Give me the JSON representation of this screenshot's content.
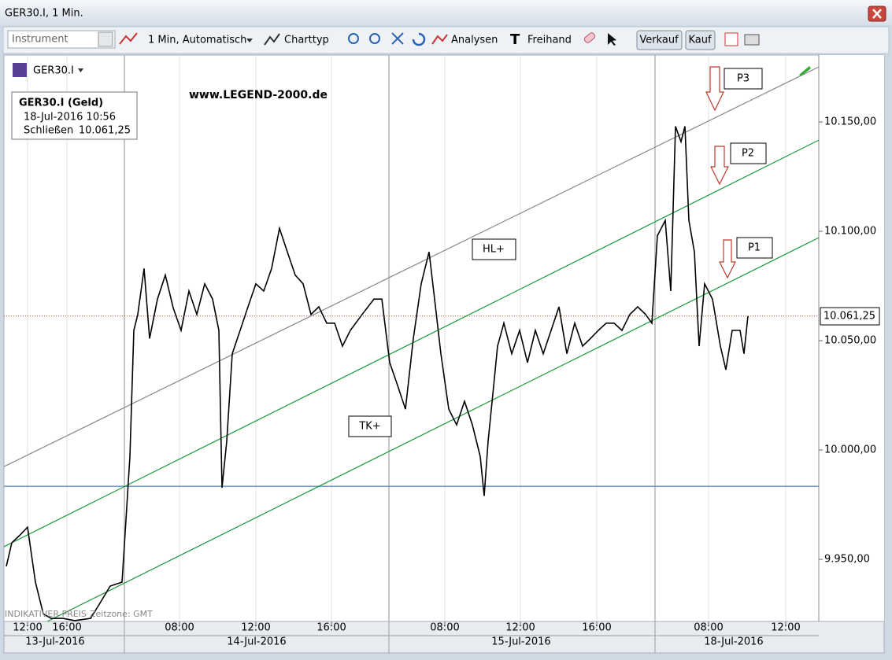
{
  "window": {
    "title": "GER30.I, 1 Min."
  },
  "toolbar": {
    "instrument": "Instrument",
    "interval": "1 Min, Automatisch",
    "chart_type": "Charttyp",
    "analyses": "Analysen",
    "freehand": "Freihand",
    "sell": "Verkauf",
    "buy": "Kauf"
  },
  "chart_data": {
    "type": "line",
    "instrument": "GER30.I",
    "watermark": "www.LEGEND-2000.de",
    "info": {
      "title": "GER30.I (Geld)",
      "time": "18-Jul-2016 10:56",
      "close_label": "Schließen"
    },
    "footer": "INDIKATIVER PREIS",
    "timezone": "Zeitzone: GMT",
    "annotations": [
      "P3",
      "P2",
      "P1",
      "HL+",
      "TK+"
    ],
    "last": {
      "value": 10061.25,
      "label": "10.061,25",
      "color": "#a0522d"
    },
    "series": [
      {
        "name": "GER30.I",
        "color": "#000000",
        "x": [
          0.6,
          2,
          4,
          6,
          8,
          10,
          12,
          15,
          18,
          22,
          24,
          27,
          30,
          31,
          32,
          33,
          34,
          35.6,
          37,
          39,
          41,
          43,
          45,
          47,
          49,
          51,
          53,
          54.6,
          55.4,
          56.6,
          58,
          60,
          62,
          64,
          66,
          68,
          70,
          72,
          74,
          76,
          78,
          80,
          82,
          84,
          86,
          88,
          91,
          94,
          96,
          98,
          100,
          102,
          104,
          106,
          108,
          109.4,
          111,
          113,
          115,
          117,
          119,
          121,
          122,
          123,
          124,
          125.4,
          127,
          129,
          131,
          133,
          135,
          137,
          139,
          141,
          143,
          145,
          147,
          149,
          151,
          153,
          155,
          157,
          159,
          161,
          163,
          164.6,
          166,
          168,
          169.4,
          170.6,
          172,
          173,
          174,
          175.4,
          176.6,
          178,
          180,
          182,
          183.4,
          185,
          187,
          188,
          189
        ],
        "values": [
          9946.8,
          9957.6,
          9961,
          9964.7,
          9939.6,
          9925,
          9923,
          9923,
          9922,
          9923,
          9928.8,
          9937.8,
          9939.6,
          9968,
          9997,
          10054.7,
          10062,
          10083,
          10051,
          10069,
          10080,
          10065,
          10054.7,
          10072.7,
          10062,
          10076,
          10069,
          10054.7,
          9982.7,
          10004,
          10044,
          10054.7,
          10065.5,
          10076,
          10072.7,
          10083,
          10101.4,
          10090.6,
          10080,
          10076,
          10062,
          10065.5,
          10058,
          10058,
          10047.5,
          10054.7,
          10062,
          10069,
          10069,
          10040,
          10029.5,
          10018.7,
          10051,
          10076,
          10090.6,
          10069,
          10044,
          10018.7,
          10011.5,
          10022.3,
          10011.5,
          9997,
          9979,
          10004,
          10022,
          10047.5,
          10058,
          10044,
          10054.7,
          10040,
          10054.7,
          10044,
          10054.7,
          10065.5,
          10044,
          10058,
          10047.5,
          10051,
          10054.7,
          10058,
          10058,
          10054.7,
          10062,
          10065.5,
          10062,
          10058,
          10098,
          10105,
          10072.7,
          10148,
          10141,
          10148,
          10105,
          10090.6,
          10047.5,
          10076,
          10069,
          10047.5,
          10036.7,
          10054.7,
          10054.7,
          10044,
          10061.25
        ]
      }
    ],
    "lines": [
      {
        "color": "#888888",
        "x": [
          0,
          207
        ],
        "values": [
          9992.4,
          10175.2
        ]
      },
      {
        "color": "#1a9a3a",
        "x": [
          0,
          207
        ],
        "values": [
          9955.8,
          10141.7
        ]
      },
      {
        "color": "#1a9a3a",
        "x": [
          11,
          207
        ],
        "values": [
          9921.6,
          10097.1
        ]
      }
    ],
    "hlines": [
      {
        "color": "#5b8fc7",
        "value": 9983.4
      }
    ],
    "xlim": [
      0,
      207
    ],
    "ylim": [
      9921.6,
      10180.6
    ],
    "yticks": [
      {
        "value": 10150,
        "label": "10.150,00"
      },
      {
        "value": 10100,
        "label": "10.100,00"
      },
      {
        "value": 10050,
        "label": "10.050,00"
      },
      {
        "value": 10000,
        "label": "10.000,00"
      },
      {
        "value": 9950,
        "label": "9.950,00"
      }
    ],
    "xticks": [
      {
        "value": 6,
        "label": "12:00"
      },
      {
        "value": 16,
        "label": "16:00"
      },
      {
        "value": 44.6,
        "label": "08:00"
      },
      {
        "value": 64,
        "label": "12:00"
      },
      {
        "value": 83.2,
        "label": "16:00"
      },
      {
        "value": 112,
        "label": "08:00"
      },
      {
        "value": 131.2,
        "label": "12:00"
      },
      {
        "value": 150.6,
        "label": "16:00"
      },
      {
        "value": 179,
        "label": "08:00"
      },
      {
        "value": 198.6,
        "label": "12:00"
      }
    ],
    "day_breaks": [
      30.6,
      97.8,
      165.4
    ],
    "date_labels": [
      {
        "value": 13,
        "label": "13-Jul-2016"
      },
      {
        "value": 64.2,
        "label": "14-Jul-2016"
      },
      {
        "value": 131.4,
        "label": "15-Jul-2016"
      },
      {
        "value": 185.4,
        "label": "18-Jul-2016"
      }
    ]
  }
}
